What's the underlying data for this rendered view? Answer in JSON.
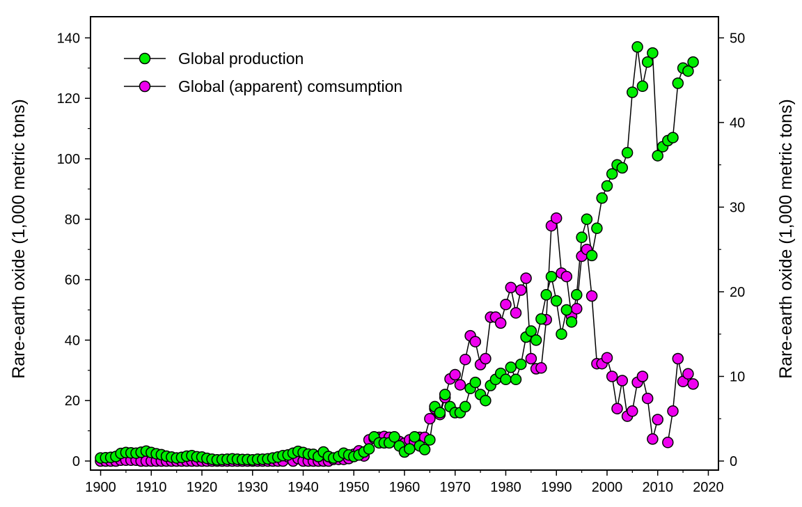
{
  "chart_data": {
    "type": "line",
    "title": "",
    "xlabel": "",
    "ylabel_left": "Rare-earth oxide (1,000 metric tons)",
    "ylabel_right": "Rare-earth oxide (1,000 metric tons)",
    "xlim": [
      1898,
      2022
    ],
    "ylim_left": [
      -3,
      147
    ],
    "ylim_right": [
      -1.07,
      52.5
    ],
    "x_ticks": [
      1900,
      1910,
      1920,
      1930,
      1940,
      1950,
      1960,
      1970,
      1980,
      1990,
      2000,
      2010,
      2020
    ],
    "y_ticks_left": [
      0,
      20,
      40,
      60,
      80,
      100,
      120,
      140
    ],
    "y_ticks_right": [
      0,
      10,
      20,
      30,
      40,
      50
    ],
    "grid": false,
    "legend_position": "top-left",
    "colors": {
      "production": "#00ee00",
      "consumption": "#ee00ee",
      "line": "#000000"
    },
    "series": [
      {
        "name": "Global production",
        "axis": "left",
        "x": [
          1900,
          1901,
          1902,
          1903,
          1904,
          1905,
          1906,
          1907,
          1908,
          1909,
          1910,
          1911,
          1912,
          1913,
          1914,
          1915,
          1916,
          1917,
          1918,
          1919,
          1920,
          1921,
          1922,
          1923,
          1924,
          1925,
          1926,
          1927,
          1928,
          1929,
          1930,
          1931,
          1932,
          1933,
          1934,
          1935,
          1936,
          1937,
          1938,
          1939,
          1940,
          1941,
          1942,
          1943,
          1944,
          1945,
          1946,
          1947,
          1948,
          1949,
          1950,
          1951,
          1952,
          1953,
          1954,
          1955,
          1956,
          1957,
          1958,
          1959,
          1960,
          1961,
          1962,
          1963,
          1964,
          1965,
          1966,
          1967,
          1968,
          1969,
          1970,
          1971,
          1972,
          1973,
          1974,
          1975,
          1976,
          1977,
          1978,
          1979,
          1980,
          1981,
          1982,
          1983,
          1984,
          1985,
          1986,
          1987,
          1988,
          1989,
          1990,
          1991,
          1992,
          1993,
          1994,
          1995,
          1996,
          1997,
          1998,
          1999,
          2000,
          2001,
          2002,
          2003,
          2004,
          2005,
          2006,
          2007,
          2008,
          2009,
          2010,
          2011,
          2012,
          2013,
          2014,
          2015,
          2016,
          2017
        ],
        "y": [
          1.0,
          1.1,
          1.2,
          1.5,
          2.5,
          2.8,
          2.7,
          2.6,
          2.9,
          3.3,
          2.8,
          2.4,
          2.1,
          1.6,
          1.3,
          1.0,
          1.2,
          1.6,
          1.8,
          1.4,
          1.3,
          0.9,
          0.6,
          0.4,
          0.5,
          0.6,
          0.7,
          0.6,
          0.5,
          0.5,
          0.4,
          0.6,
          0.6,
          0.7,
          1.0,
          1.3,
          1.8,
          2.0,
          2.6,
          3.2,
          2.8,
          2.3,
          2.2,
          1.5,
          3.0,
          1.5,
          1.0,
          1.5,
          2.6,
          2.0,
          1.5,
          2.0,
          3.0,
          4.0,
          8.0,
          6.0,
          6.0,
          6.0,
          8.0,
          5.0,
          3.0,
          4.0,
          8.0,
          5.0,
          3.8,
          7.0,
          18.0,
          16.0,
          22.0,
          18.0,
          16.0,
          16.0,
          18.0,
          24.0,
          26.0,
          22.0,
          20.0,
          25.0,
          27.0,
          29.0,
          27.0,
          31.0,
          27.0,
          32.0,
          41.0,
          43.0,
          40.0,
          47.0,
          55.0,
          61.0,
          53.0,
          42.0,
          50.0,
          46.0,
          55.0,
          74.0,
          80.0,
          68.0,
          77.0,
          87.0,
          91.0,
          95.0,
          98.0,
          97.0,
          102.0,
          122.0,
          137.0,
          124.0,
          132.0,
          135.0,
          101.0,
          104.0,
          106.0,
          107.0,
          125.0,
          130.0,
          129.0,
          132.0
        ]
      },
      {
        "name": "Global (apparent) comsumption",
        "axis": "right",
        "x": [
          1900,
          1901,
          1902,
          1903,
          1904,
          1905,
          1906,
          1907,
          1908,
          1909,
          1910,
          1911,
          1912,
          1913,
          1914,
          1915,
          1916,
          1917,
          1918,
          1919,
          1920,
          1921,
          1922,
          1923,
          1924,
          1925,
          1926,
          1927,
          1928,
          1929,
          1930,
          1931,
          1932,
          1933,
          1934,
          1935,
          1936,
          1937,
          1938,
          1939,
          1940,
          1941,
          1942,
          1943,
          1944,
          1945,
          1946,
          1947,
          1948,
          1949,
          1950,
          1951,
          1952,
          1953,
          1954,
          1955,
          1956,
          1957,
          1958,
          1959,
          1960,
          1961,
          1962,
          1963,
          1964,
          1965,
          1966,
          1967,
          1968,
          1969,
          1970,
          1971,
          1972,
          1973,
          1974,
          1975,
          1976,
          1977,
          1978,
          1979,
          1980,
          1981,
          1982,
          1983,
          1984,
          1985,
          1986,
          1987,
          1988,
          1989,
          1990,
          1991,
          1992,
          1993,
          1994,
          1995,
          1996,
          1997,
          1998,
          1999,
          2000,
          2001,
          2002,
          2003,
          2004,
          2005,
          2006,
          2007,
          2008,
          2009,
          2010,
          2011,
          2012,
          2013,
          2014,
          2015,
          2016,
          2017
        ],
        "y": [
          0,
          0,
          0,
          0,
          0.1,
          0.1,
          0.1,
          0.1,
          0,
          0,
          0,
          0,
          0,
          0,
          0,
          0,
          0,
          0,
          0,
          0,
          0,
          0,
          0,
          0,
          0,
          0,
          0,
          0,
          0,
          0,
          0,
          0,
          0,
          0,
          0,
          0,
          0,
          0.5,
          0,
          0.3,
          0,
          0,
          0,
          0,
          0,
          0,
          0.2,
          0.2,
          0.2,
          0.3,
          0.8,
          1.2,
          0.6,
          2.5,
          2.7,
          2.8,
          2.9,
          2.8,
          2.6,
          2.3,
          2.1,
          2.5,
          2.3,
          2.8,
          2.8,
          5.0,
          6.2,
          5.5,
          7.5,
          9.7,
          10.2,
          9.0,
          12.0,
          14.8,
          14.1,
          11.4,
          12.1,
          17.0,
          17.0,
          16.3,
          18.5,
          20.5,
          17.5,
          20.2,
          21.6,
          12.1,
          10.9,
          11.0,
          16.7,
          27.8,
          28.7,
          22.2,
          21.8,
          17.1,
          18.0,
          24.2,
          25.0,
          19.5,
          11.5,
          11.5,
          12.2,
          10.0,
          6.2,
          9.5,
          5.3,
          5.9,
          9.3,
          10.0,
          7.4,
          2.6,
          4.9,
          null,
          2.2,
          5.9,
          12.1,
          9.4,
          10.3,
          9.1
        ]
      }
    ]
  }
}
